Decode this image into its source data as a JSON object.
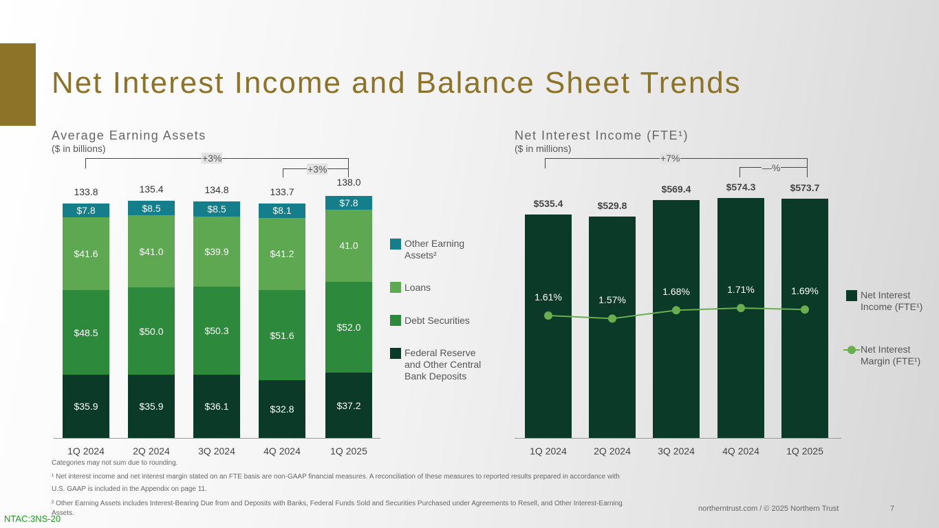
{
  "title": "Net Interest Income and Balance Sheet Trends",
  "colors": {
    "federal": "#0b3a28",
    "debt": "#2d8a3c",
    "loans": "#5ea852",
    "other": "#147e8a",
    "nii": "#0b3a28",
    "nim": "#6aae4f",
    "gold": "#8c7327"
  },
  "chart_data": [
    {
      "type": "bar",
      "stacked": true,
      "title": "Average Earning Assets",
      "subtitle": "($ in billions)",
      "categories": [
        "1Q 2024",
        "2Q 2024",
        "3Q 2024",
        "4Q 2024",
        "1Q 2025"
      ],
      "series": [
        {
          "name": "Federal Reserve and Other Central Bank Deposits",
          "values": [
            35.9,
            35.9,
            36.1,
            32.8,
            37.2
          ],
          "labels": [
            "$35.9",
            "$35.9",
            "$36.1",
            "$32.8",
            "$37.2"
          ]
        },
        {
          "name": "Debt Securities",
          "values": [
            48.5,
            50.0,
            50.3,
            51.6,
            52.0
          ],
          "labels": [
            "$48.5",
            "$50.0",
            "$50.3",
            "$51.6",
            "$52.0"
          ]
        },
        {
          "name": "Loans",
          "values": [
            41.6,
            41.0,
            39.9,
            41.2,
            41.0
          ],
          "labels": [
            "$41.6",
            "$41.0",
            "$39.9",
            "$41.2",
            "41.0"
          ]
        },
        {
          "name": "Other Earning Assets²",
          "values": [
            7.8,
            8.5,
            8.5,
            8.1,
            7.8
          ],
          "labels": [
            "$7.8",
            "$8.5",
            "$8.5",
            "$8.1",
            "$7.8"
          ]
        }
      ],
      "totals": [
        "133.8",
        "135.4",
        "134.8",
        "133.7",
        "138.0"
      ],
      "annotations": [
        "+3%",
        "+3%"
      ],
      "ylim": [
        0,
        140
      ]
    },
    {
      "type": "bar",
      "title": "Net Interest Income (FTE¹)",
      "subtitle": "($ in millions)",
      "categories": [
        "1Q 2024",
        "2Q 2024",
        "3Q 2024",
        "4Q 2024",
        "1Q 2025"
      ],
      "series": [
        {
          "name": "Net Interest Income (FTE¹)",
          "type": "bar",
          "values": [
            535.4,
            529.8,
            569.4,
            574.3,
            573.7
          ],
          "labels": [
            "$535.4",
            "$529.8",
            "$569.4",
            "$574.3",
            "$573.7"
          ]
        },
        {
          "name": "Net Interest Margin (FTE¹)",
          "type": "line",
          "values": [
            1.61,
            1.57,
            1.68,
            1.71,
            1.69
          ],
          "labels": [
            "1.61%",
            "1.57%",
            "1.68%",
            "1.71%",
            "1.69%"
          ]
        }
      ],
      "annotations": [
        "+7%",
        "—%"
      ]
    }
  ],
  "legend_left": [
    "Other Earning Assets²",
    "Loans",
    "Debt Securities",
    "Federal Reserve and Other Central Bank Deposits"
  ],
  "legend_right": [
    "Net Interest Income (FTE¹)",
    "Net Interest Margin (FTE¹)"
  ],
  "footnotes": [
    "Categories  may not sum due to rounding.",
    "¹ Net interest  income and net interest  margin stated on an FTE basis are non-GAAP financial measures.  A reconciliation  of these measures  to reported results prepared in accordance with",
    "U.S. GAAP  is included in the Appendix on page 11.",
    "² Other Earning Assets includes Interest-Bearing  Due from and Deposits with Banks, Federal Funds Sold and Securities Purchased under Agreements  to Resell,  and Other Interest-Earning",
    "Assets."
  ],
  "footer": {
    "copyright": "northerntrust.com / © 2025 Northern Trust",
    "page": "7",
    "code": "NTAC:3NS-20"
  }
}
